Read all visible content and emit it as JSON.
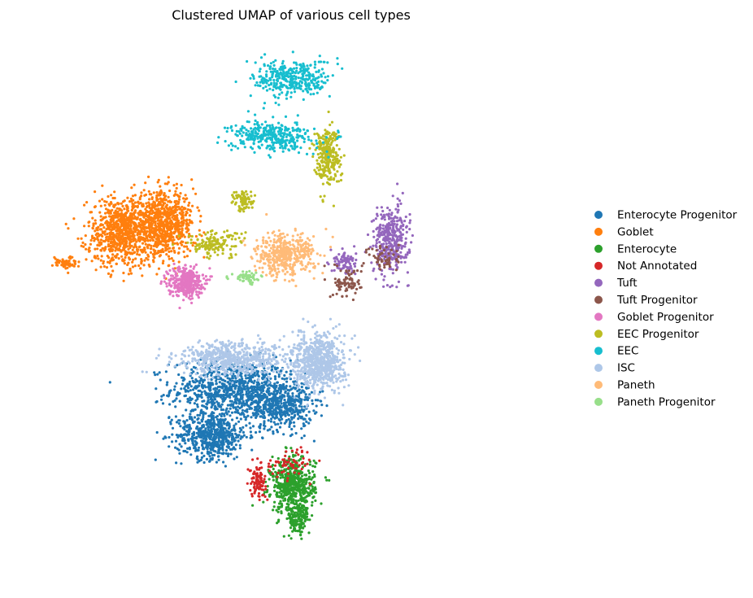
{
  "chart_data": {
    "type": "scatter",
    "title": "Clustered UMAP of various cell types",
    "xlabel": "",
    "ylabel": "",
    "axes_visible": false,
    "grid": false,
    "legend_position": "right",
    "xlim": [
      0,
      18
    ],
    "ylim": [
      0,
      14
    ],
    "series": [
      {
        "name": "Enterocyte Progenitor",
        "color": "#1f77b4",
        "n_points": 1900,
        "blobs": [
          {
            "cx": 6.9,
            "cy": 4.7,
            "sx": 1.9,
            "sy": 0.7,
            "w": 0.45
          },
          {
            "cx": 6.2,
            "cy": 3.5,
            "sx": 1.1,
            "sy": 0.55,
            "w": 0.3
          },
          {
            "cx": 8.6,
            "cy": 4.3,
            "sx": 1.0,
            "sy": 0.6,
            "w": 0.25
          }
        ]
      },
      {
        "name": "Goblet",
        "color": "#ff7f0e",
        "n_points": 1600,
        "blobs": [
          {
            "cx": 3.1,
            "cy": 8.8,
            "sx": 1.1,
            "sy": 0.8,
            "w": 0.5
          },
          {
            "cx": 4.5,
            "cy": 9.0,
            "sx": 1.0,
            "sy": 0.75,
            "w": 0.5
          },
          {
            "cx": 1.1,
            "cy": 8.0,
            "sx": 0.35,
            "sy": 0.15,
            "w": 0.04
          }
        ]
      },
      {
        "name": "Enterocyte",
        "color": "#2ca02c",
        "n_points": 700,
        "blobs": [
          {
            "cx": 9.0,
            "cy": 2.2,
            "sx": 0.7,
            "sy": 0.65,
            "w": 0.8
          },
          {
            "cx": 9.2,
            "cy": 1.3,
            "sx": 0.35,
            "sy": 0.4,
            "w": 0.2
          }
        ]
      },
      {
        "name": "Not Annotated",
        "color": "#d62728",
        "n_points": 160,
        "blobs": [
          {
            "cx": 7.8,
            "cy": 2.3,
            "sx": 0.25,
            "sy": 0.35,
            "w": 0.6
          },
          {
            "cx": 8.9,
            "cy": 2.8,
            "sx": 0.8,
            "sy": 0.35,
            "w": 0.4
          }
        ]
      },
      {
        "name": "Tuft",
        "color": "#9467bd",
        "n_points": 450,
        "blobs": [
          {
            "cx": 12.4,
            "cy": 8.6,
            "sx": 0.55,
            "sy": 0.8,
            "w": 0.8
          },
          {
            "cx": 10.8,
            "cy": 8.0,
            "sx": 0.35,
            "sy": 0.3,
            "w": 0.2
          }
        ]
      },
      {
        "name": "Tuft Progenitor",
        "color": "#8c564b",
        "n_points": 140,
        "blobs": [
          {
            "cx": 10.9,
            "cy": 7.5,
            "sx": 0.45,
            "sy": 0.35,
            "w": 0.6
          },
          {
            "cx": 12.2,
            "cy": 8.1,
            "sx": 0.5,
            "sy": 0.4,
            "w": 0.4
          }
        ]
      },
      {
        "name": "Goblet Progenitor",
        "color": "#e377c2",
        "n_points": 350,
        "blobs": [
          {
            "cx": 5.3,
            "cy": 7.5,
            "sx": 0.55,
            "sy": 0.35,
            "w": 1.0
          }
        ]
      },
      {
        "name": "EEC Progenitor",
        "color": "#bcbd22",
        "n_points": 500,
        "blobs": [
          {
            "cx": 10.2,
            "cy": 10.8,
            "sx": 0.4,
            "sy": 0.7,
            "w": 0.55
          },
          {
            "cx": 6.3,
            "cy": 8.5,
            "sx": 0.9,
            "sy": 0.3,
            "w": 0.3
          },
          {
            "cx": 7.3,
            "cy": 9.6,
            "sx": 0.35,
            "sy": 0.25,
            "w": 0.15
          }
        ]
      },
      {
        "name": "EEC",
        "color": "#17becf",
        "n_points": 700,
        "blobs": [
          {
            "cx": 9.0,
            "cy": 12.8,
            "sx": 1.2,
            "sy": 0.45,
            "w": 0.5
          },
          {
            "cx": 8.3,
            "cy": 11.3,
            "sx": 1.3,
            "sy": 0.35,
            "w": 0.5
          }
        ]
      },
      {
        "name": "ISC",
        "color": "#aec7e8",
        "n_points": 1300,
        "blobs": [
          {
            "cx": 9.9,
            "cy": 5.4,
            "sx": 0.8,
            "sy": 0.65,
            "w": 0.55
          },
          {
            "cx": 7.0,
            "cy": 5.5,
            "sx": 1.8,
            "sy": 0.4,
            "w": 0.45
          }
        ]
      },
      {
        "name": "Paneth",
        "color": "#ffbb78",
        "n_points": 450,
        "blobs": [
          {
            "cx": 8.7,
            "cy": 8.2,
            "sx": 0.95,
            "sy": 0.5,
            "w": 1.0
          }
        ]
      },
      {
        "name": "Paneth Progenitor",
        "color": "#98df8a",
        "n_points": 60,
        "blobs": [
          {
            "cx": 7.4,
            "cy": 7.6,
            "sx": 0.45,
            "sy": 0.15,
            "w": 1.0
          }
        ]
      }
    ]
  }
}
